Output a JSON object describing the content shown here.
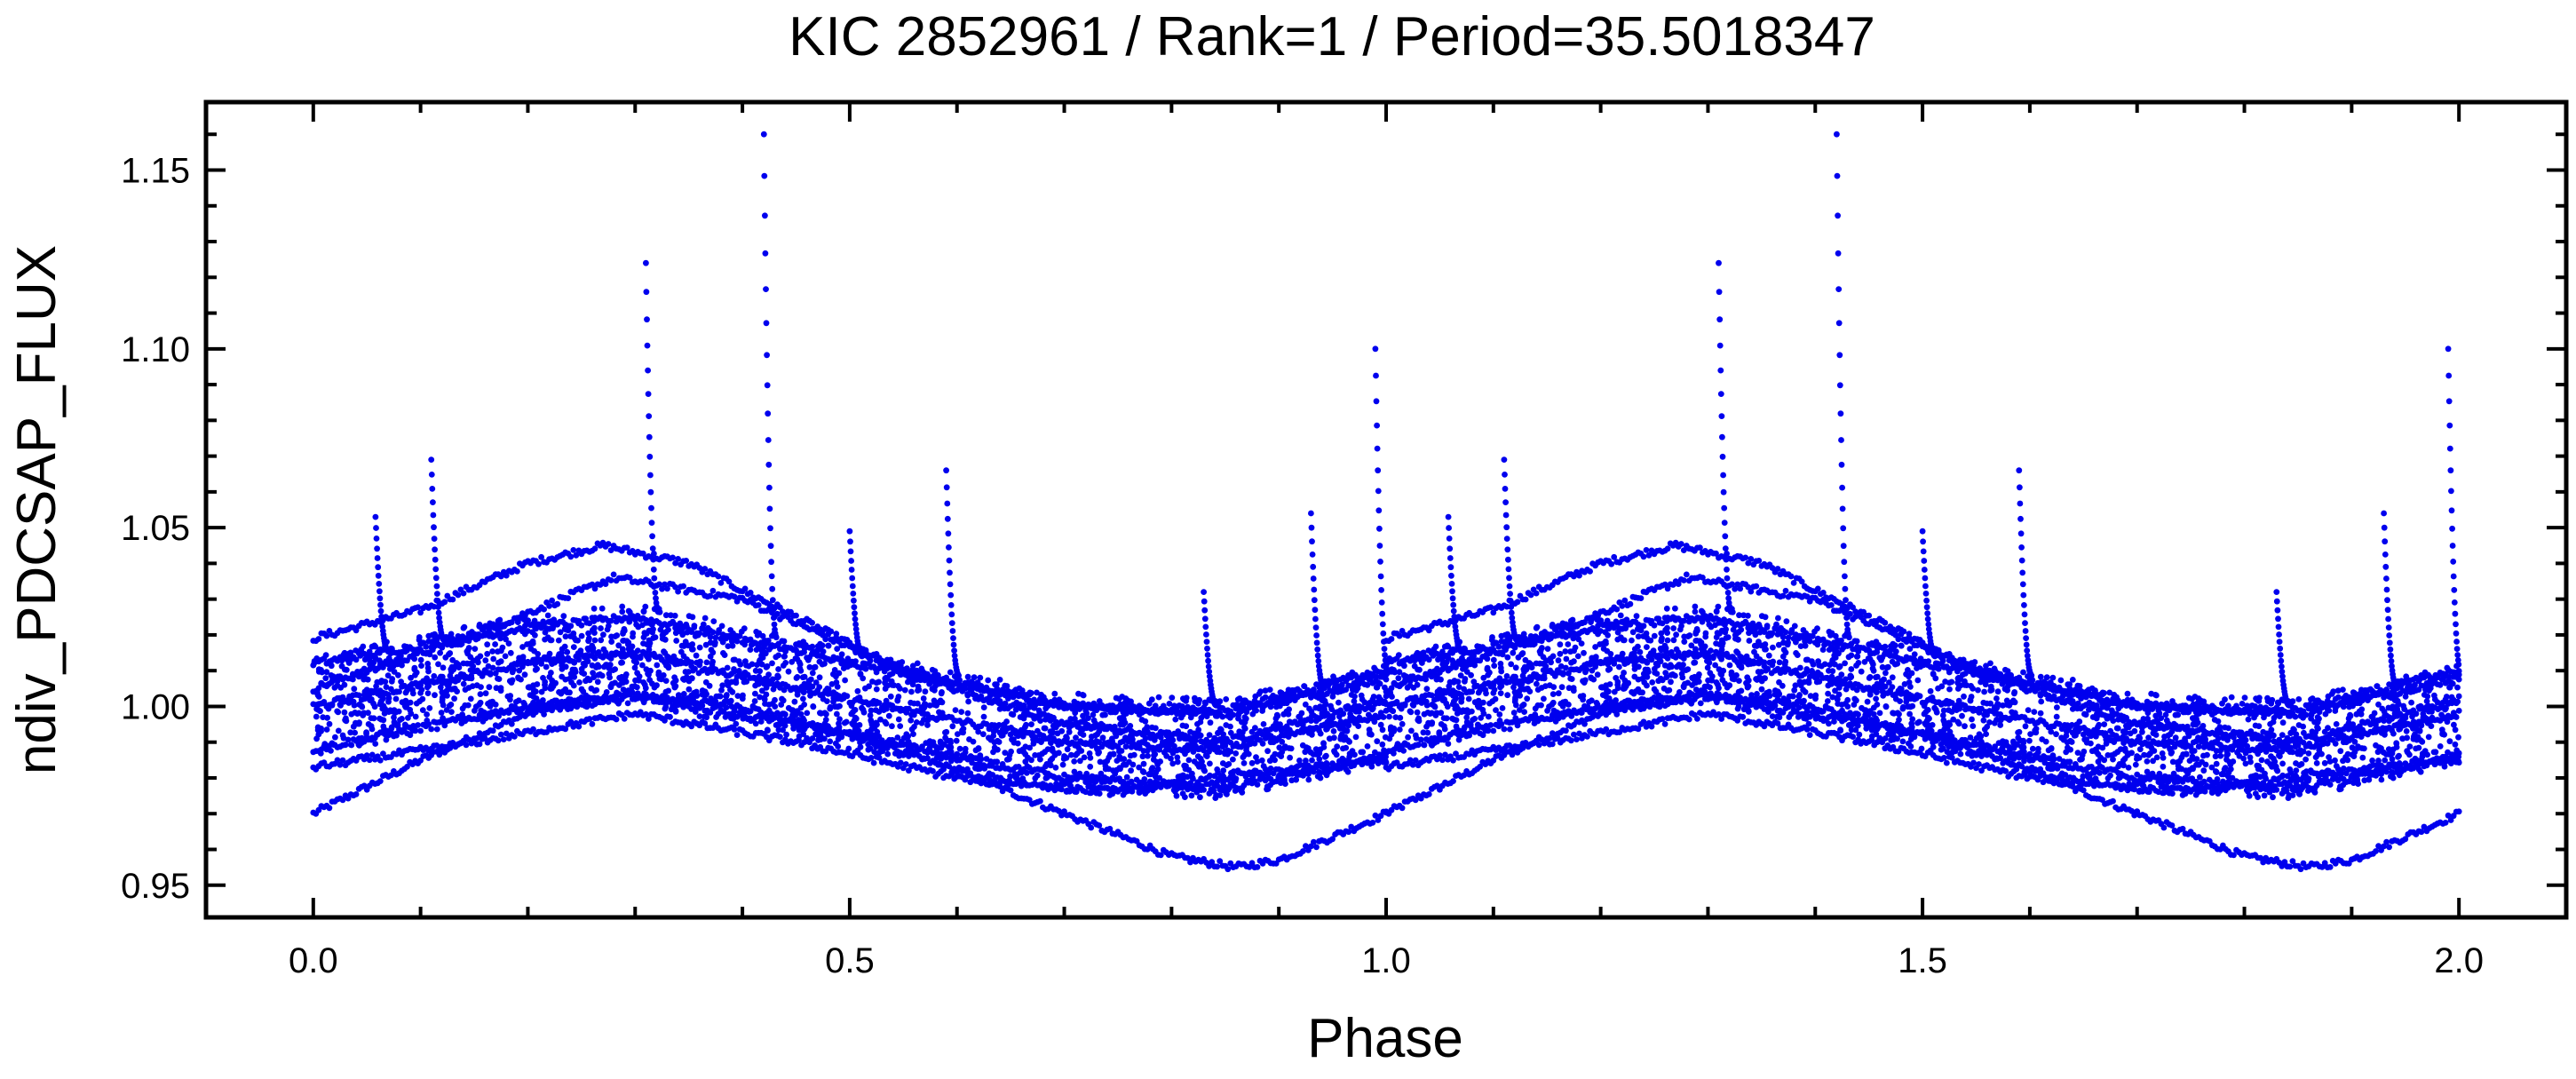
{
  "chart_data": {
    "type": "scatter",
    "title": "KIC 2852961 / Rank=1 / Period=35.5018347",
    "xlabel": "Phase",
    "ylabel": "ndiv_PDCSAP_FLUX",
    "xlim": [
      -0.1,
      2.1
    ],
    "ylim": [
      0.941,
      1.169
    ],
    "x_ticks": [
      0.0,
      0.5,
      1.0,
      1.5,
      2.0
    ],
    "x_tick_labels": [
      "0.0",
      "0.5",
      "1.0",
      "1.5",
      "2.0"
    ],
    "y_ticks": [
      0.95,
      1.0,
      1.05,
      1.1,
      1.15
    ],
    "y_tick_labels": [
      "0.95",
      "1.00",
      "1.05",
      "1.10",
      "1.15"
    ],
    "point_color": "#0000ee",
    "grid": false,
    "phase_repeat": 2,
    "representative_tracks": [
      {
        "name": "low-dip",
        "phase": [
          0.0,
          0.1,
          0.2,
          0.3,
          0.4,
          0.5,
          0.6,
          0.7,
          0.8,
          0.86,
          0.9,
          1.0
        ],
        "flux": [
          0.97,
          0.985,
          0.998,
          1.003,
          1.0,
          0.992,
          0.982,
          0.97,
          0.958,
          0.955,
          0.957,
          0.97
        ]
      },
      {
        "name": "high-arc",
        "phase": [
          0.0,
          0.1,
          0.2,
          0.27,
          0.35,
          0.45,
          0.55,
          0.7,
          0.85,
          1.0
        ],
        "flux": [
          1.019,
          1.027,
          1.04,
          1.045,
          1.04,
          1.025,
          1.01,
          1.0,
          0.998,
          1.008
        ]
      },
      {
        "name": "mid-arc",
        "phase": [
          0.0,
          0.15,
          0.28,
          0.4,
          0.55,
          0.7,
          0.85,
          1.0
        ],
        "flux": [
          1.005,
          1.02,
          1.036,
          1.03,
          1.01,
          0.995,
          0.99,
          1.002
        ]
      },
      {
        "name": "band-upper",
        "phase": [
          0.0,
          0.2,
          0.3,
          0.5,
          0.7,
          0.85,
          1.0
        ],
        "flux": [
          1.012,
          1.022,
          1.025,
          1.012,
          1.0,
          0.999,
          1.01
        ]
      },
      {
        "name": "band-center",
        "phase": [
          0.0,
          0.2,
          0.3,
          0.5,
          0.7,
          0.85,
          1.0
        ],
        "flux": [
          1.0,
          1.012,
          1.015,
          1.002,
          0.99,
          0.988,
          0.998
        ]
      },
      {
        "name": "band-lower",
        "phase": [
          0.0,
          0.2,
          0.3,
          0.5,
          0.7,
          0.85,
          1.0
        ],
        "flux": [
          0.988,
          1.0,
          1.003,
          0.992,
          0.98,
          0.977,
          0.986
        ]
      },
      {
        "name": "low-flat",
        "phase": [
          0.0,
          0.15,
          0.3,
          0.45,
          0.6,
          0.75,
          0.9,
          1.0
        ],
        "flux": [
          0.983,
          0.99,
          0.998,
          0.99,
          0.98,
          0.976,
          0.982,
          0.985
        ]
      }
    ],
    "flares": [
      {
        "phase": 0.058,
        "peak": 1.053
      },
      {
        "phase": 0.11,
        "peak": 1.069
      },
      {
        "phase": 0.31,
        "peak": 1.124
      },
      {
        "phase": 0.42,
        "peak": 1.16
      },
      {
        "phase": 0.5,
        "peak": 1.049
      },
      {
        "phase": 0.59,
        "peak": 1.066
      },
      {
        "phase": 0.83,
        "peak": 1.032
      },
      {
        "phase": 0.93,
        "peak": 1.054
      },
      {
        "phase": 0.99,
        "peak": 1.1
      }
    ]
  }
}
